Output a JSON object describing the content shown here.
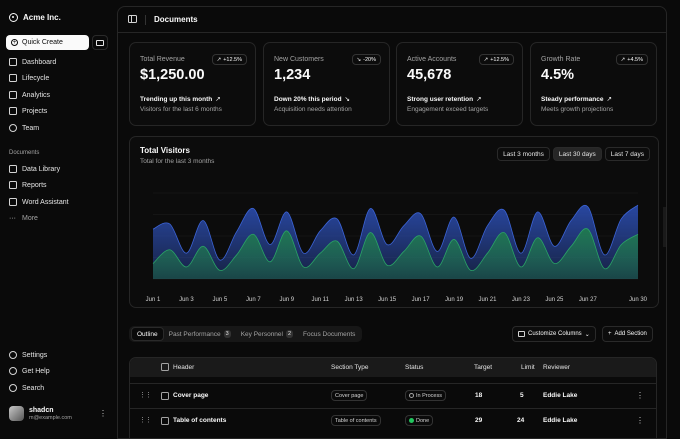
{
  "sidebar": {
    "brand": "Acme Inc.",
    "quick_create": "Quick Create",
    "nav": [
      {
        "label": "Dashboard",
        "icon": "dashboard-icon"
      },
      {
        "label": "Lifecycle",
        "icon": "list-icon"
      },
      {
        "label": "Analytics",
        "icon": "chart-icon"
      },
      {
        "label": "Projects",
        "icon": "folder-icon"
      },
      {
        "label": "Team",
        "icon": "users-icon"
      }
    ],
    "documents_label": "Documents",
    "documents": [
      {
        "label": "Data Library",
        "icon": "database-icon"
      },
      {
        "label": "Reports",
        "icon": "report-icon"
      },
      {
        "label": "Word Assistant",
        "icon": "file-icon"
      },
      {
        "label": "More",
        "icon": "more-icon"
      }
    ],
    "bottom": [
      {
        "label": "Settings",
        "icon": "gear-icon"
      },
      {
        "label": "Get Help",
        "icon": "help-icon"
      },
      {
        "label": "Search",
        "icon": "search-icon"
      }
    ],
    "user": {
      "name": "shadcn",
      "email": "m@example.com"
    }
  },
  "header": {
    "title": "Documents"
  },
  "cards": [
    {
      "title": "Total Revenue",
      "value": "$1,250.00",
      "badge": "+12.5%",
      "trend": "up",
      "foot": "Trending up this month",
      "sub": "Visitors for the last 6 months"
    },
    {
      "title": "New Customers",
      "value": "1,234",
      "badge": "-20%",
      "trend": "down",
      "foot": "Down 20% this period",
      "sub": "Acquisition needs attention"
    },
    {
      "title": "Active Accounts",
      "value": "45,678",
      "badge": "+12.5%",
      "trend": "up",
      "foot": "Strong user retention",
      "sub": "Engagement exceed targets"
    },
    {
      "title": "Growth Rate",
      "value": "4.5%",
      "badge": "+4.5%",
      "trend": "up",
      "foot": "Steady performance",
      "sub": "Meets growth projections"
    }
  ],
  "visitors": {
    "title": "Total Visitors",
    "subtitle": "Total for the last 3 months",
    "ranges": [
      "Last 3 months",
      "Last 30 days",
      "Last 7 days"
    ],
    "active_range": "Last 30 days"
  },
  "chart_data": {
    "type": "area",
    "title": "Total Visitors",
    "x_ticks": [
      "Jun 1",
      "Jun 3",
      "Jun 5",
      "Jun 7",
      "Jun 9",
      "Jun 11",
      "Jun 13",
      "Jun 15",
      "Jun 17",
      "Jun 19",
      "Jun 21",
      "Jun 23",
      "Jun 25",
      "Jun 27",
      "Jun 30"
    ],
    "x": [
      "Jun 1",
      "Jun 2",
      "Jun 3",
      "Jun 4",
      "Jun 5",
      "Jun 6",
      "Jun 7",
      "Jun 8",
      "Jun 9",
      "Jun 10",
      "Jun 11",
      "Jun 12",
      "Jun 13",
      "Jun 14",
      "Jun 15",
      "Jun 16",
      "Jun 17",
      "Jun 18",
      "Jun 19",
      "Jun 20",
      "Jun 21",
      "Jun 22",
      "Jun 23",
      "Jun 24",
      "Jun 25",
      "Jun 26",
      "Jun 27",
      "Jun 28",
      "Jun 29",
      "Jun 30"
    ],
    "ylim": [
      0,
      100
    ],
    "grid": true,
    "colors": {
      "desktop": "#2a4aa8",
      "mobile": "#1f7a4d"
    },
    "series": [
      {
        "values": [
          58,
          64,
          30,
          68,
          22,
          55,
          82,
          40,
          78,
          30,
          56,
          70,
          28,
          82,
          40,
          62,
          76,
          32,
          72,
          24,
          62,
          80,
          30,
          78,
          38,
          68,
          84,
          28,
          70,
          86
        ]
      },
      {
        "values": [
          18,
          34,
          14,
          38,
          10,
          28,
          52,
          20,
          56,
          14,
          30,
          44,
          12,
          54,
          16,
          32,
          50,
          14,
          46,
          10,
          30,
          54,
          14,
          48,
          18,
          38,
          58,
          12,
          40,
          52
        ]
      }
    ]
  },
  "tabs": [
    {
      "label": "Outline",
      "count": ""
    },
    {
      "label": "Past Performance",
      "count": "3"
    },
    {
      "label": "Key Personnel",
      "count": "2"
    },
    {
      "label": "Focus Documents",
      "count": ""
    }
  ],
  "actions": {
    "customize": "Customize Columns",
    "add_section": "Add Section"
  },
  "table": {
    "headers": [
      "Header",
      "Section Type",
      "Status",
      "Target",
      "Limit",
      "Reviewer"
    ],
    "rows": [
      {
        "header": "Cover page",
        "type": "Cover page",
        "status": "In Process",
        "target": "18",
        "limit": "5",
        "reviewer": "Eddie Lake"
      },
      {
        "header": "Table of contents",
        "type": "Table of contents",
        "status": "Done",
        "target": "29",
        "limit": "24",
        "reviewer": "Eddie Lake"
      }
    ]
  }
}
